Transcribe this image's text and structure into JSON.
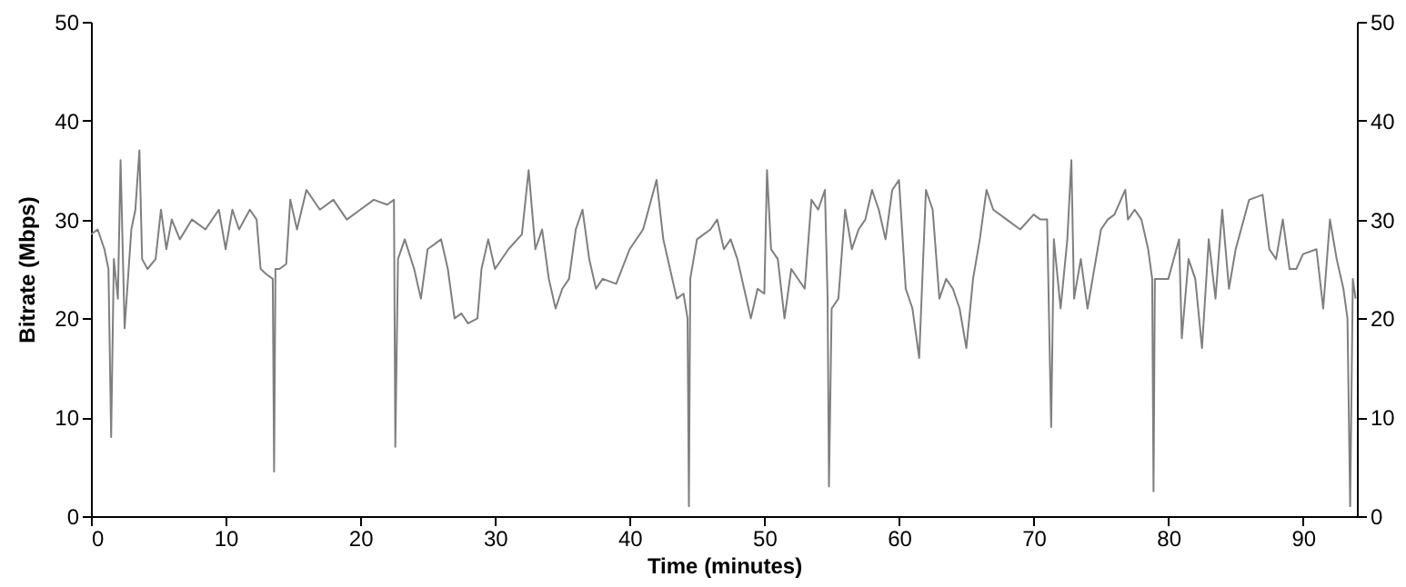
{
  "chart_data": {
    "type": "line",
    "xlabel": "Time (minutes)",
    "ylabel": "Bitrate (Mbps)",
    "xlim": [
      0,
      94
    ],
    "xticks": [
      0,
      10,
      20,
      30,
      40,
      50,
      60,
      70,
      80,
      90
    ],
    "ylim": [
      0,
      50
    ],
    "yticks": [
      0,
      10,
      20,
      30,
      40,
      50
    ],
    "y2lim": [
      0,
      50
    ],
    "y2ticks": [
      0,
      10,
      20,
      30,
      40,
      50
    ],
    "grid": false,
    "x": [
      0,
      0.5,
      1,
      1.3,
      1.5,
      1.7,
      2,
      2.2,
      2.5,
      2.8,
      3,
      3.3,
      3.6,
      3.8,
      4.2,
      4.8,
      5.2,
      5.6,
      6,
      6.6,
      7.5,
      8.5,
      9,
      9.5,
      10,
      10.5,
      11,
      11.8,
      12.3,
      12.6,
      13,
      13.5,
      13.6,
      13.7,
      14,
      14.5,
      14.8,
      15.3,
      16,
      17,
      18,
      19,
      20,
      21,
      22,
      22.5,
      22.6,
      22.8,
      23.3,
      24,
      24.5,
      25,
      26,
      26.5,
      27,
      27.5,
      28,
      28.7,
      29,
      29.5,
      30,
      31,
      32,
      32.5,
      33,
      33.5,
      34,
      34.5,
      35,
      35.5,
      36,
      36.5,
      37,
      37.5,
      38,
      39,
      40,
      41,
      41.5,
      42,
      42.5,
      43,
      43.5,
      44,
      44.3,
      44.4,
      44.5,
      45,
      46,
      46.5,
      47,
      47.5,
      48,
      48.5,
      49,
      49.5,
      50,
      50.2,
      50.5,
      51,
      51.5,
      52,
      53,
      53.5,
      54,
      54.5,
      54.7,
      54.8,
      55,
      55.5,
      56,
      56.5,
      57,
      57.5,
      58,
      58.5,
      59,
      59.5,
      60,
      60.5,
      61,
      61.5,
      62,
      62.5,
      63,
      63.5,
      64,
      64.5,
      65,
      65.5,
      66,
      66.5,
      67,
      68,
      69,
      70,
      70.5,
      71,
      71.3,
      71.5,
      72,
      72.5,
      72.8,
      73,
      73.5,
      74,
      75,
      75.5,
      76,
      76.8,
      77,
      77.5,
      78,
      78.5,
      78.8,
      78.9,
      79,
      80,
      80.8,
      81,
      81.5,
      82,
      82.5,
      83,
      83.5,
      84,
      84.5,
      85,
      86,
      87,
      87.5,
      88,
      88.5,
      89,
      89.5,
      90,
      91,
      91.5,
      92,
      92.5,
      93,
      93.3,
      93.5,
      93.7,
      93.9
    ],
    "series": [
      {
        "color": "#7f7f7f",
        "values": [
          28.5,
          29,
          27,
          25,
          8,
          26,
          22,
          36,
          19,
          25,
          29,
          31,
          37,
          26,
          25,
          26,
          31,
          27,
          30,
          28,
          30,
          29,
          30,
          31,
          27,
          31,
          29,
          31,
          30,
          25,
          24.5,
          24,
          4.5,
          25,
          25,
          25.5,
          32,
          29,
          33,
          31,
          32,
          30,
          31,
          32,
          31.5,
          32,
          7,
          26,
          28,
          25,
          22,
          27,
          28,
          25,
          20,
          20.5,
          19.5,
          20,
          25,
          28,
          25,
          27,
          28.5,
          35,
          27,
          29,
          24,
          21,
          23,
          24,
          29,
          31,
          26,
          23,
          24,
          23.5,
          27,
          29,
          31.5,
          34,
          28,
          25,
          22,
          22.5,
          20,
          1,
          24,
          28,
          29,
          30,
          27,
          28,
          26,
          23,
          20,
          23,
          22.5,
          35,
          27,
          26,
          20,
          25,
          23,
          32,
          31,
          33,
          22,
          3,
          21,
          22,
          31,
          27,
          29,
          30,
          33,
          31,
          28,
          33,
          34,
          23,
          21,
          16,
          33,
          31,
          22,
          24,
          23,
          21,
          17,
          24,
          28,
          33,
          31,
          30,
          29,
          30.5,
          30,
          30,
          9,
          28,
          21,
          28,
          36,
          22,
          26,
          21,
          29,
          30,
          30.5,
          33,
          30,
          31,
          30,
          27,
          24,
          2.5,
          24,
          24,
          28,
          18,
          26,
          24,
          17,
          28,
          22,
          31,
          23,
          27,
          32,
          32.5,
          27,
          26,
          30,
          25,
          25,
          26.5,
          27,
          21,
          30,
          26,
          23,
          20,
          1,
          24,
          22
        ]
      }
    ]
  }
}
